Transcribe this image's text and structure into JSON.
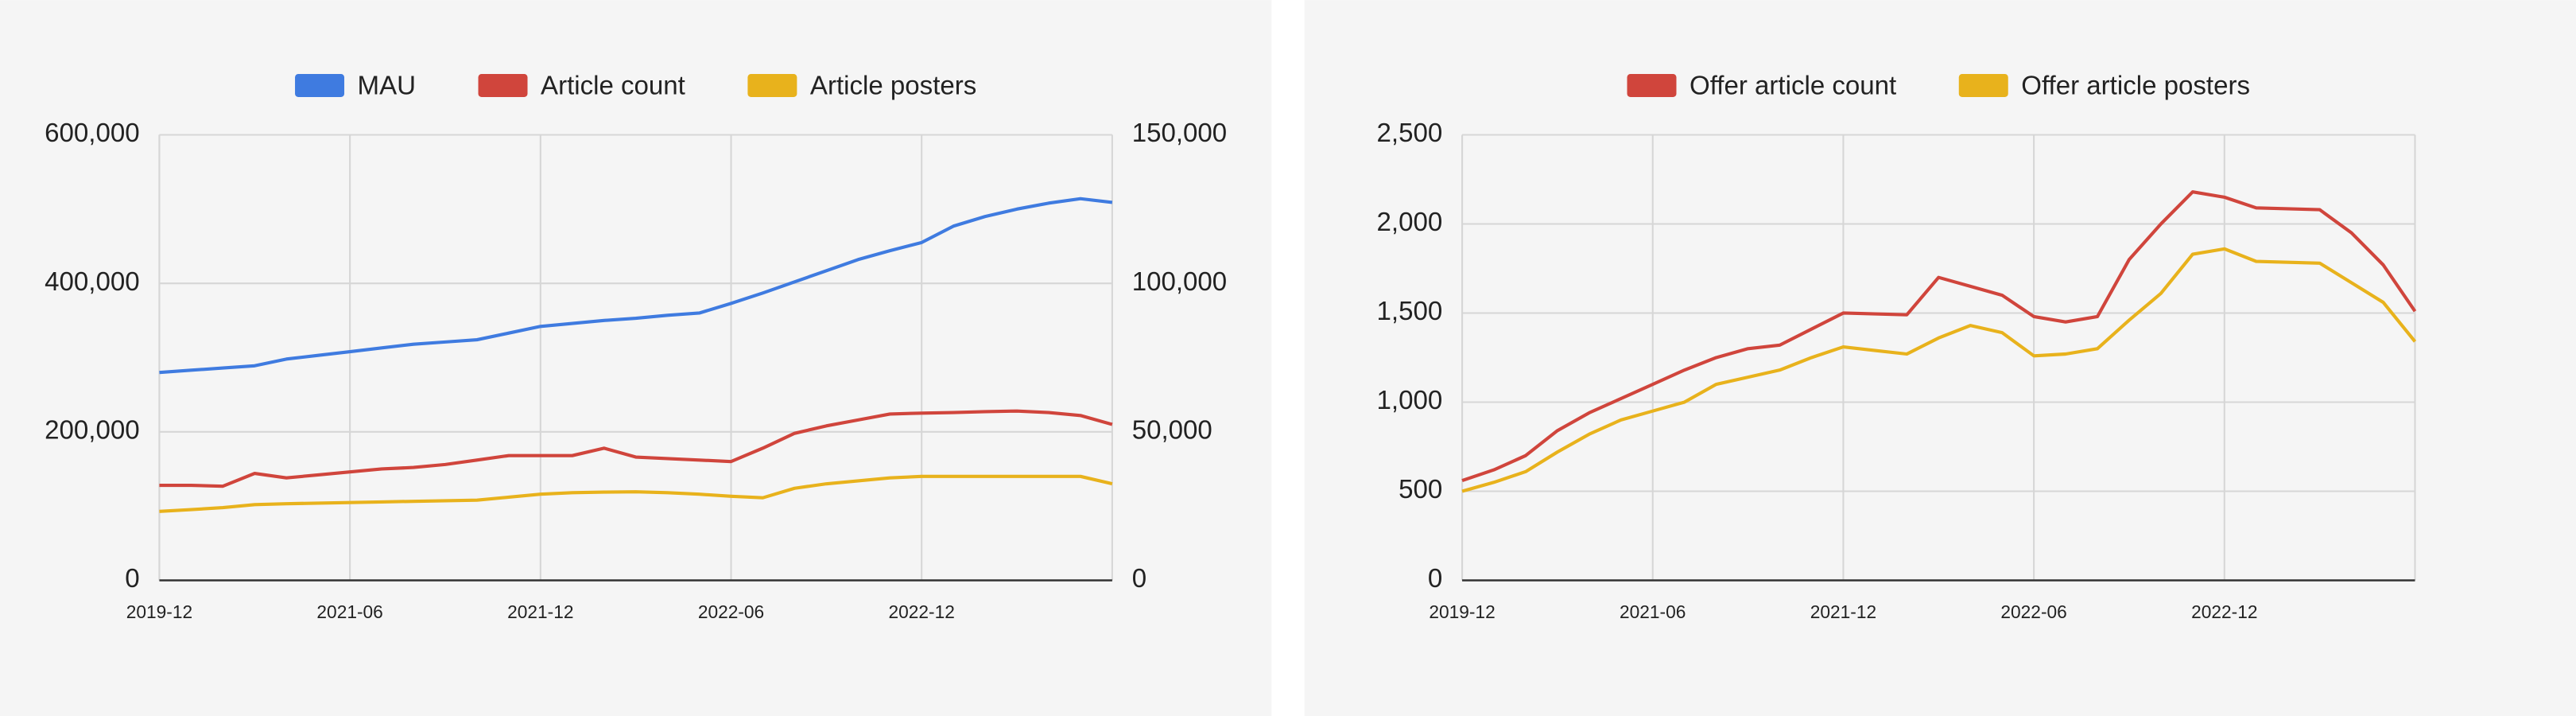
{
  "chart_data": [
    {
      "type": "line",
      "categories": [
        "2019-12",
        null,
        null,
        null,
        null,
        null,
        "2021-06",
        null,
        null,
        null,
        null,
        null,
        "2021-12",
        null,
        null,
        null,
        null,
        null,
        "2022-06",
        null,
        null,
        null,
        null,
        null,
        "2022-12",
        null,
        null,
        null,
        null,
        null,
        null
      ],
      "series": [
        {
          "name": "MAU",
          "color": "#3f7be0",
          "axis": "y",
          "values": [
            280000,
            283000,
            286000,
            289000,
            298000,
            303000,
            308000,
            313000,
            318000,
            321000,
            324000,
            333000,
            342000,
            346000,
            350000,
            353000,
            357000,
            360000,
            373000,
            387000,
            402000,
            417000,
            432000,
            444000,
            455000,
            477000,
            490000,
            500000,
            508000,
            514000,
            509000
          ]
        },
        {
          "name": "Article count",
          "color": "#d0453c",
          "axis": "y2",
          "values": [
            32000,
            32000,
            31700,
            36000,
            34500,
            35500,
            36500,
            37500,
            38000,
            39000,
            40500,
            42000,
            42000,
            42000,
            44500,
            41500,
            41000,
            40500,
            40000,
            44500,
            49500,
            52000,
            54000,
            56000,
            56300,
            56500,
            56800,
            57000,
            56500,
            55500,
            52500
          ]
        },
        {
          "name": "Article posters",
          "color": "#e8b21c",
          "axis": "y2",
          "values": [
            23200,
            23800,
            24500,
            25500,
            25800,
            26000,
            26200,
            26400,
            26600,
            26800,
            27000,
            28000,
            29000,
            29500,
            29700,
            29800,
            29500,
            29000,
            28300,
            27800,
            31000,
            32500,
            33500,
            34500,
            35000,
            35000,
            35000,
            35000,
            35000,
            35000,
            32500
          ]
        }
      ],
      "ylim": [
        0,
        600000
      ],
      "yticks": [
        0,
        {
          "value": 200000,
          "label": "200,000"
        },
        {
          "value": 400000,
          "label": "400,000"
        },
        {
          "value": 600000,
          "label": "600,000"
        }
      ],
      "y2lim": [
        0,
        150000
      ],
      "y2ticks": [
        0,
        {
          "value": 50000,
          "label": "50,000"
        },
        {
          "value": 100000,
          "label": "100,000"
        },
        {
          "value": 150000,
          "label": "150,000"
        }
      ],
      "grid": true,
      "legend": "top"
    },
    {
      "type": "line",
      "categories": [
        "2019-12",
        null,
        null,
        null,
        null,
        null,
        "2021-06",
        null,
        null,
        null,
        null,
        null,
        "2021-12",
        null,
        null,
        null,
        null,
        null,
        "2022-06",
        null,
        null,
        null,
        null,
        null,
        "2022-12",
        null,
        null,
        null,
        null,
        null,
        null
      ],
      "series": [
        {
          "name": "Offer article count",
          "color": "#d0453c",
          "axis": "y",
          "values": [
            560,
            620,
            700,
            840,
            940,
            1020,
            1100,
            1180,
            1250,
            1300,
            1320,
            1410,
            1500,
            1495,
            1490,
            1700,
            1650,
            1600,
            1480,
            1450,
            1480,
            1800,
            2000,
            2180,
            2150,
            2090,
            2085,
            2080,
            1950,
            1770,
            1510
          ]
        },
        {
          "name": "Offer article posters",
          "color": "#e8b21c",
          "axis": "y",
          "values": [
            500,
            550,
            610,
            720,
            820,
            900,
            950,
            1000,
            1100,
            1140,
            1180,
            1250,
            1310,
            1290,
            1270,
            1360,
            1430,
            1390,
            1260,
            1270,
            1300,
            1460,
            1610,
            1830,
            1860,
            1790,
            1785,
            1780,
            1670,
            1560,
            1340
          ]
        }
      ],
      "ylim": [
        0,
        2500
      ],
      "yticks": [
        0,
        500,
        {
          "value": 1000,
          "label": "1,000"
        },
        {
          "value": 1500,
          "label": "1,500"
        },
        {
          "value": 2000,
          "label": "2,000"
        },
        {
          "value": 2500,
          "label": "2,500"
        }
      ],
      "grid": true,
      "legend": "top"
    }
  ]
}
